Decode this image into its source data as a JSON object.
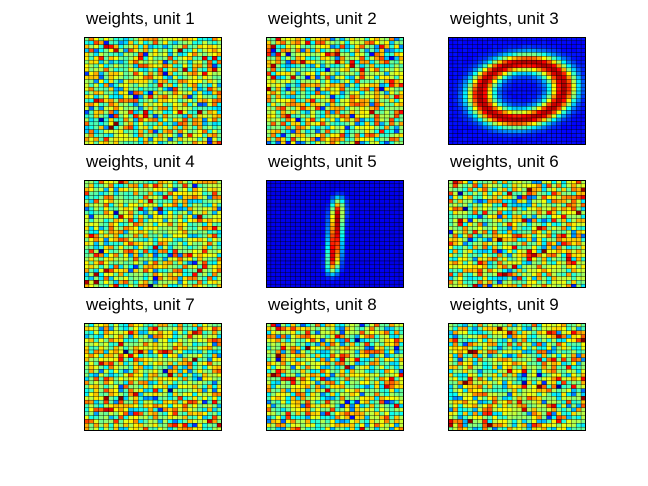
{
  "chart_data": [
    {
      "type": "heatmap",
      "title": "weights, unit 1",
      "pattern": "random",
      "seed": 11
    },
    {
      "type": "heatmap",
      "title": "weights, unit 2",
      "pattern": "random",
      "seed": 22
    },
    {
      "type": "heatmap",
      "title": "weights, unit 3",
      "pattern": "digit-0",
      "seed": 33
    },
    {
      "type": "heatmap",
      "title": "weights, unit 4",
      "pattern": "random",
      "seed": 44
    },
    {
      "type": "heatmap",
      "title": "weights, unit 5",
      "pattern": "digit-1",
      "seed": 55
    },
    {
      "type": "heatmap",
      "title": "weights, unit 6",
      "pattern": "random",
      "seed": 66
    },
    {
      "type": "heatmap",
      "title": "weights, unit 7",
      "pattern": "random",
      "seed": 77
    },
    {
      "type": "heatmap",
      "title": "weights, unit 8",
      "pattern": "random",
      "seed": 88
    },
    {
      "type": "heatmap",
      "title": "weights, unit 9",
      "pattern": "random",
      "seed": 99
    }
  ],
  "colormap": "jet",
  "grid_size": [
    28,
    28
  ],
  "grid_lines": true,
  "colors": {
    "background": "#ffffff",
    "grid_line": "#000000"
  }
}
